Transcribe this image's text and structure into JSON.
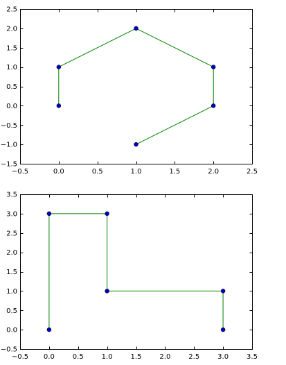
{
  "chart_data": [
    {
      "type": "line",
      "title": "",
      "xlabel": "",
      "ylabel": "",
      "xlim": [
        -0.5,
        2.5
      ],
      "ylim": [
        -1.5,
        2.5
      ],
      "xticks": [
        -0.5,
        0.0,
        0.5,
        1.0,
        1.5,
        2.0,
        2.5
      ],
      "yticks": [
        -1.5,
        -1.0,
        -0.5,
        0.0,
        0.5,
        1.0,
        1.5,
        2.0,
        2.5
      ],
      "xtick_labels": [
        "−0.5",
        "0.0",
        "0.5",
        "1.0",
        "1.5",
        "2.0",
        "2.5"
      ],
      "ytick_labels": [
        "−1.5",
        "−1.0",
        "−0.5",
        "0.0",
        "0.5",
        "1.0",
        "1.5",
        "2.0",
        "2.5"
      ],
      "grid": false,
      "series": [
        {
          "line_color": "#008000",
          "marker_color": "#0000bf",
          "x": [
            0,
            0,
            1,
            2,
            2,
            1
          ],
          "y": [
            0,
            1,
            2,
            1,
            0,
            -1
          ]
        }
      ]
    },
    {
      "type": "line",
      "title": "",
      "xlabel": "",
      "ylabel": "",
      "xlim": [
        -0.5,
        3.5
      ],
      "ylim": [
        -0.5,
        3.5
      ],
      "xticks": [
        -0.5,
        0.0,
        0.5,
        1.0,
        1.5,
        2.0,
        2.5,
        3.0,
        3.5
      ],
      "yticks": [
        -0.5,
        0.0,
        0.5,
        1.0,
        1.5,
        2.0,
        2.5,
        3.0,
        3.5
      ],
      "xtick_labels": [
        "−0.5",
        "0.0",
        "0.5",
        "1.0",
        "1.5",
        "2.0",
        "2.5",
        "3.0",
        "3.5"
      ],
      "ytick_labels": [
        "−0.5",
        "0.0",
        "0.5",
        "1.0",
        "1.5",
        "2.0",
        "2.5",
        "3.0",
        "3.5"
      ],
      "grid": false,
      "series": [
        {
          "line_color": "#008000",
          "marker_color": "#0000bf",
          "x": [
            0,
            0,
            1,
            1,
            3,
            3
          ],
          "y": [
            0,
            3,
            3,
            1,
            1,
            0
          ]
        }
      ]
    }
  ]
}
